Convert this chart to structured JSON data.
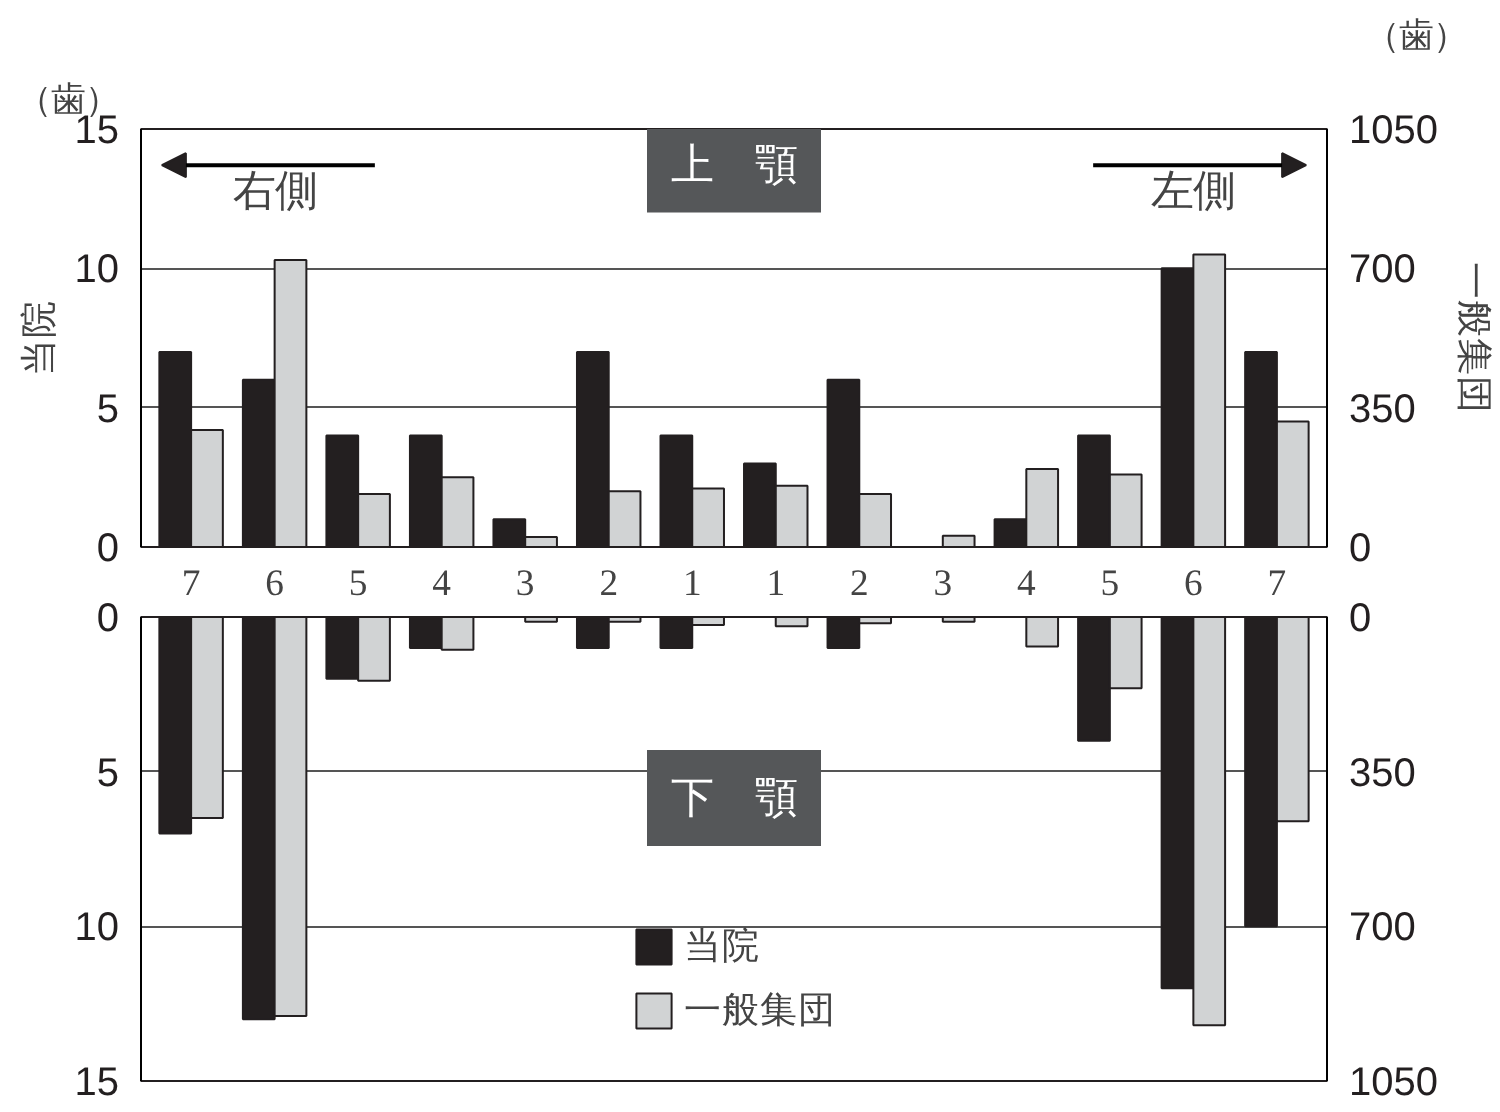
{
  "chart_data": [
    {
      "type": "bar",
      "categories": [
        "7",
        "6",
        "5",
        "4",
        "3",
        "2",
        "1",
        "1",
        "2",
        "3",
        "4",
        "5",
        "6",
        "7"
      ],
      "ylabel": "当院",
      "y2label": "一般集団",
      "series": [
        {
          "color": "#231f20",
          "values": [
            7,
            6,
            4,
            4,
            1,
            7,
            4,
            3,
            6,
            0,
            1,
            4,
            10,
            7
          ]
        },
        {
          "color": "#d1d3d4",
          "axis": "y2",
          "values": [
            294,
            721,
            133,
            175,
            25,
            140,
            147,
            154,
            133,
            28,
            196,
            182,
            735,
            315
          ]
        }
      ],
      "ylim": [
        0,
        15
      ],
      "yticks": [
        0,
        5,
        10,
        15
      ],
      "y2lim": [
        0,
        1050
      ],
      "y2ticks": [
        0,
        350,
        700,
        1050
      ],
      "grid": "y",
      "annotations": [
        "（歯）",
        "（歯）",
        "右側",
        "左側",
        "上　顎"
      ]
    },
    {
      "type": "bar",
      "categories": [
        null,
        null,
        null,
        null,
        null,
        null,
        null,
        null,
        null,
        null,
        null,
        null,
        null,
        null
      ],
      "series": [
        {
          "name": "当院",
          "color": "#231f20",
          "values": [
            7,
            13,
            2,
            1,
            0,
            1,
            1,
            0,
            1,
            0,
            0,
            4,
            12,
            10
          ]
        },
        {
          "name": "一般集団",
          "color": "#d1d3d4",
          "axis": "y2",
          "values": [
            455,
            903,
            144,
            74,
            11,
            11,
            18,
            21,
            14,
            11,
            67,
            161,
            924,
            462
          ]
        }
      ],
      "ylim": [
        15,
        0
      ],
      "yticks": [
        0,
        5,
        10,
        15
      ],
      "y2lim": [
        1050,
        0
      ],
      "y2ticks": [
        0,
        350,
        700,
        1050
      ],
      "grid": "y",
      "tick_labels": "y",
      "legend": "bottom",
      "annotations": [
        "下　顎"
      ]
    }
  ]
}
